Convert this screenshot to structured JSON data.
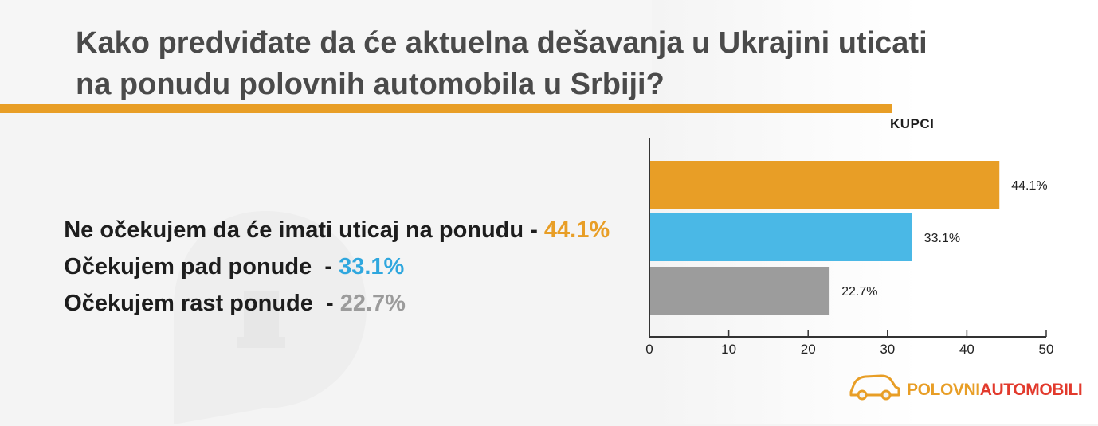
{
  "title": "Kako predviđate da će aktuelna dešavanja u Ukrajini uticati na ponudu polovnih automobila u Srbiji?",
  "answers": [
    {
      "text": "Ne očekujem da će imati uticaj na ponudu - ",
      "pct": "44.1%",
      "color": "#e89e26"
    },
    {
      "text": "Očekujem pad ponude  - ",
      "pct": "33.1%",
      "color": "#2fa7de"
    },
    {
      "text": "Očekujem rast ponude  - ",
      "pct": "22.7%",
      "color": "#9b9b9b"
    }
  ],
  "chart_data": {
    "type": "bar",
    "orientation": "horizontal",
    "title": "KUPCI",
    "categories": [
      "Ne očekujem da će imati uticaj na ponudu",
      "Očekujem pad ponude",
      "Očekujem rast ponude"
    ],
    "values": [
      44.1,
      33.1,
      22.7
    ],
    "value_labels": [
      "44.1%",
      "33.1%",
      "22.7%"
    ],
    "colors": [
      "#e89e26",
      "#4ab8e6",
      "#9c9c9c"
    ],
    "xlim": [
      0,
      50
    ],
    "xticks": [
      0,
      10,
      20,
      30,
      40,
      50
    ],
    "xlabel": "",
    "ylabel": "",
    "grid": false,
    "legend": "none"
  },
  "logo": {
    "part1": "POLOVNI",
    "part2": "AUTOMOBILI"
  }
}
